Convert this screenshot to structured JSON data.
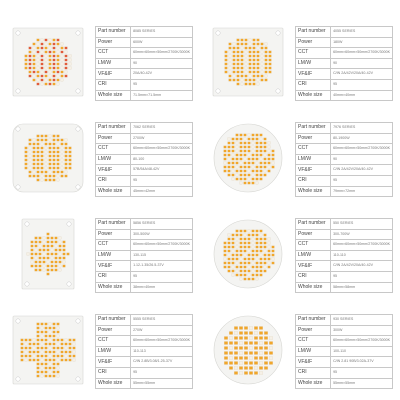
{
  "labels": [
    "Part number",
    "Power",
    "CCT",
    "LM/W",
    "VF&IF",
    "CRI",
    "Whole size"
  ],
  "products": [
    {
      "shape": "square-hex",
      "values": [
        "8085 SERIES",
        "600W",
        "60mm×60mm×50mm/2700K/3000K",
        "90",
        "20A/40-42V",
        "95",
        "71.5mm×71.5mm"
      ]
    },
    {
      "shape": "square-round",
      "values": [
        "4055 SERIES",
        "180W",
        "60mm×60mm×50mm/2700K/3000K",
        "90",
        "C/IN 2A/42V/20A/40-42V",
        "95",
        "40mm×40mm"
      ]
    },
    {
      "shape": "rounded-square",
      "values": [
        "7062 SERIES",
        "2700W",
        "60mm×60mm×50mm/2700K/3000K",
        "80-100",
        "57B/54A/48-42V",
        "95",
        "45mm×42mm"
      ]
    },
    {
      "shape": "round",
      "values": [
        "7976 SERIES",
        "80-1900W",
        "60mm×60mm×50mm/2700K/3000K",
        "90",
        "C/IN 2A/42V/20A/40-42V",
        "95",
        "79mm×72mm"
      ]
    },
    {
      "shape": "rect-round",
      "values": [
        "5856 SERIES",
        "300-500W",
        "60mm×60mm×50mm/2700K/3000K",
        "130-115",
        "1.12-1.35/26.5-37V",
        "95",
        "38mm×40mm"
      ]
    },
    {
      "shape": "round-large",
      "values": [
        "550 SERIES",
        "300-700W",
        "60mm×60mm×50mm/2700K/3000K",
        "110-110",
        "C/IN 2A/42V/20A/40-42V",
        "95",
        "58mm×58mm"
      ]
    },
    {
      "shape": "square-cross",
      "values": [
        "5555 SERIES",
        "270W",
        "60mm×60mm×50mm/2700K/3000K",
        "110-113",
        "C/IN 2.8B/3.08/1.25-37V",
        "95",
        "55mm×55mm"
      ]
    },
    {
      "shape": "round-sparse",
      "values": [
        "930 SERIES",
        "300W",
        "60mm×60mm×50mm/2700K/3000K",
        "100-110",
        "C/IN 2.81 90B/3.02A-37V",
        "95",
        "55mm×55mm"
      ]
    }
  ],
  "colors": {
    "led_warm": "#f1a62a",
    "led_red": "#e25a3a",
    "led_white": "#f5f0e6",
    "board": "#f4f4f2",
    "grid": "#c8c8c8"
  }
}
